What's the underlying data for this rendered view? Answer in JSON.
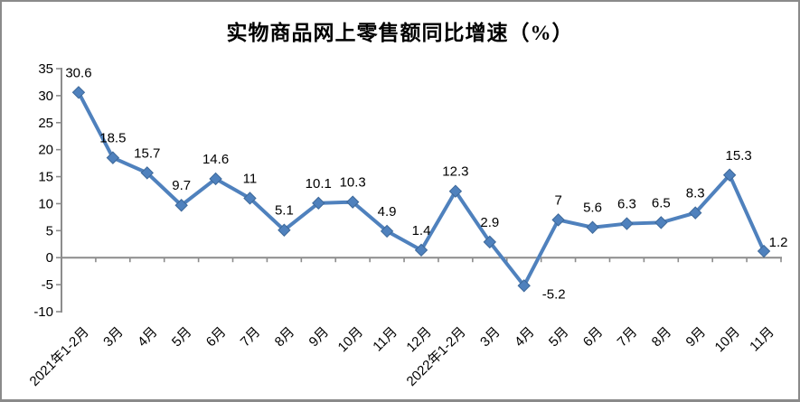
{
  "window": {
    "background": "#ffffff",
    "border_color": "#8a8a8a"
  },
  "chart_data": {
    "type": "line",
    "title": "实物商品网上零售额同比增速（%）",
    "categories": [
      "2021年1-2月",
      "3月",
      "4月",
      "5月",
      "6月",
      "7月",
      "8月",
      "9月",
      "10月",
      "11月",
      "12月",
      "2022年1-2月",
      "3月",
      "4月",
      "5月",
      "6月",
      "7月",
      "8月",
      "9月",
      "10月",
      "11月"
    ],
    "values": [
      30.6,
      18.5,
      15.7,
      9.7,
      14.6,
      11,
      5.1,
      10.1,
      10.3,
      4.9,
      1.4,
      12.3,
      2.9,
      -5.2,
      7,
      5.6,
      6.3,
      6.5,
      8.3,
      15.3,
      1.2
    ],
    "xlabel": "",
    "ylabel": "",
    "ylim": [
      -10,
      35
    ],
    "ytick_step": 5,
    "ytick_labels": [
      "-10",
      "-5",
      "0",
      "5",
      "10",
      "15",
      "20",
      "25",
      "30",
      "35"
    ],
    "grid": "off",
    "legend": "none",
    "data_labels_shown": true,
    "marker": "diamond",
    "series_color": "#4F81BD",
    "marker_edge_color": "#3D6899",
    "axis_color": "#8C8C8C",
    "text_color": "#000000",
    "label_adjust": {
      "13": [
        33,
        31
      ],
      "19": [
        10,
        0
      ],
      "20": [
        16,
        12
      ]
    }
  }
}
